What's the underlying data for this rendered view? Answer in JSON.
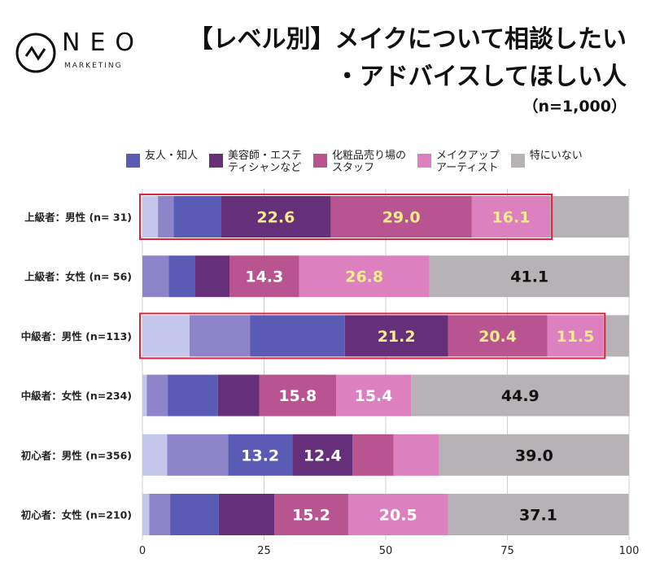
{
  "logo": {
    "name": "NEO",
    "sub": "MARKETING"
  },
  "chart_data": {
    "type": "bar",
    "orientation": "horizontal",
    "stacked": true,
    "title": "【レベル別】メイクについて相談したい\n・アドバイスしてほしい人",
    "subtitle": "（n=1,000）",
    "categories": [
      "上級者：男性 (n= 31)",
      "上級者：女性 (n= 56)",
      "中級者：男性 (n=113)",
      "中級者：女性 (n=234)",
      "初心者：男性 (n=356)",
      "初心者：女性 (n=210)"
    ],
    "series": [
      {
        "values": [
          3.2,
          0,
          9.7,
          0.9,
          5.1,
          1.4
        ],
        "color": "#c5c6ec"
      },
      {
        "values": [
          3.2,
          5.4,
          12.4,
          4.3,
          12.5,
          4.3
        ],
        "color": "#8e84c9"
      },
      {
        "name": "友人・知人",
        "values": [
          9.7,
          5.4,
          19.5,
          10.3,
          13.2,
          10.0
        ],
        "color": "#5a5bb5"
      },
      {
        "name": "美容師・エステ\nティシャンなど",
        "values": [
          22.6,
          7.1,
          21.2,
          8.5,
          12.4,
          11.4
        ],
        "color": "#653079"
      },
      {
        "name": "化粧品売り場の\nスタッフ",
        "values": [
          29.0,
          14.3,
          20.4,
          15.8,
          8.4,
          15.2
        ],
        "color": "#b8548f"
      },
      {
        "name": "メイクアップ\nアーティスト",
        "values": [
          16.1,
          26.8,
          11.5,
          15.4,
          9.4,
          20.5
        ],
        "color": "#dd80bf"
      },
      {
        "name": "特にいない",
        "values": [
          16.1,
          41.1,
          5.3,
          44.9,
          39.0,
          37.1
        ],
        "color": "#b6b2b5"
      }
    ],
    "data_labels": [
      [
        null,
        null,
        null,
        "22.6",
        "29.0",
        "16.1",
        null
      ],
      [
        null,
        null,
        null,
        null,
        "14.3",
        "26.8",
        "41.1"
      ],
      [
        null,
        null,
        null,
        "21.2",
        "20.4",
        "11.5",
        null
      ],
      [
        null,
        null,
        null,
        null,
        "15.8",
        "15.4",
        "44.9"
      ],
      [
        null,
        null,
        "13.2",
        "12.4",
        null,
        null,
        "39.0"
      ],
      [
        null,
        null,
        null,
        null,
        "15.2",
        "20.5",
        "37.1"
      ]
    ],
    "highlighted_rows": [
      0,
      2
    ],
    "highlight_color": "#e0213f",
    "highlight_label_color": "#f8ec8c",
    "xlim": [
      0,
      100
    ],
    "xticks": [
      "0",
      "25",
      "50",
      "75",
      "100"
    ],
    "grid": true,
    "legend_position": "top"
  }
}
